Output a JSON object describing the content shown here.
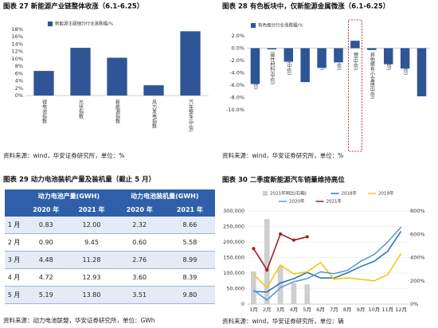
{
  "chart_data": [
    {
      "type": "bar",
      "title": "图表 27 新能源产业链整体收涨（6.1-6.25）",
      "categories": [
        "锂电池指数",
        "光伏指数",
        "新能源指数",
        "风力发电指数",
        "汽车整车(中信)"
      ],
      "series": [
        {
          "name": "新能源主题细分行业涨跌幅/%",
          "color": "#2f5597",
          "values": [
            6.7,
            13.0,
            10.3,
            2.8,
            17.5
          ]
        }
      ],
      "ylim": [
        0,
        18
      ],
      "yticks": [
        {
          "value": 0,
          "label": "0%"
        },
        {
          "value": 2,
          "label": "2%"
        },
        {
          "value": 4,
          "label": "4%"
        },
        {
          "value": 6,
          "label": "6%"
        },
        {
          "value": 8,
          "label": "8%"
        },
        {
          "value": 10,
          "label": "10%"
        },
        {
          "value": 12,
          "label": "12%"
        },
        {
          "value": 14,
          "label": "14%"
        },
        {
          "value": 16,
          "label": "16%"
        },
        {
          "value": 18,
          "label": "18%"
        }
      ],
      "grid": false,
      "source": "资料来源：wind，华安证券研究所，单位：%"
    },
    {
      "type": "bar",
      "title": "图表 28 有色板块中，仅新能源金属微涨（6.1-6.25）",
      "categories": [
        "金属新材料(中信)",
        "磁性材料(中信)",
        "黄金(中信)",
        "稀土(中信)",
        "铝(中信)",
        "铜(中信)",
        "锂(中信)",
        "其他稀有小金属(中信)",
        "钴(中信)",
        "铅锌(中信)",
        "钨(中信)"
      ],
      "series": [
        {
          "name": "有色细分行业涨跌幅/%",
          "color": "#2f5597",
          "values": [
            -5.8,
            -0.2,
            -2.2,
            -5.5,
            -3.2,
            -2.3,
            1.2,
            -0.3,
            -2.6,
            -3.3,
            -7.8
          ]
        }
      ],
      "ylim": [
        -10,
        2
      ],
      "yticks": [
        {
          "value": 2,
          "label": "2.0%"
        },
        {
          "value": 0,
          "label": "0.0%"
        },
        {
          "value": -2,
          "label": "-2.0%"
        },
        {
          "value": -4,
          "label": "-4.0%"
        },
        {
          "value": -6,
          "label": "-6.0%"
        },
        {
          "value": -8,
          "label": "-8.0%"
        },
        {
          "value": -10,
          "label": "-10.0%"
        }
      ],
      "grid": false,
      "highlight": 6,
      "source": "资料来源：wind，华安证券研究所，单位：%"
    },
    {
      "type": "combo",
      "title": "图表 30 二季度新能源汽车销量维持高位",
      "categories": [
        "1月",
        "2月",
        "3月",
        "4月",
        "5月",
        "6月",
        "7月",
        "8月",
        "9月",
        "10月",
        "11月",
        "12月"
      ],
      "series": [
        {
          "name": "2021年同比(右轴)",
          "type": "bar",
          "axis": "y2",
          "color": "#cfcfcf",
          "values": [
            280,
            730,
            327,
            180,
            170,
            null,
            null,
            null,
            null,
            null,
            null,
            null
          ]
        },
        {
          "name": "2018年",
          "type": "line",
          "color": "#2e75b6",
          "values": [
            41000,
            39000,
            68000,
            82000,
            102000,
            84000,
            84000,
            101000,
            121000,
            138000,
            170000,
            235000
          ]
        },
        {
          "name": "2019年",
          "type": "line",
          "color": "#f2c714",
          "values": [
            96000,
            53000,
            126000,
            97000,
            104000,
            134000,
            80000,
            85000,
            80000,
            75000,
            95000,
            163000
          ]
        },
        {
          "name": "2020年",
          "type": "line",
          "color": "#5b9bd5",
          "values": [
            45000,
            13000,
            53000,
            72000,
            82000,
            104000,
            98000,
            109000,
            138000,
            160000,
            200000,
            248000
          ]
        },
        {
          "name": "2021年",
          "type": "line",
          "color": "#a31e22",
          "values": [
            179000,
            110000,
            226000,
            206000,
            217000,
            null,
            null,
            null,
            null,
            null,
            null,
            null
          ]
        }
      ],
      "ylim": [
        0,
        300000
      ],
      "yticks": [
        0,
        {
          "value": 50000,
          "label": "50,000"
        },
        {
          "value": 100000,
          "label": "100,000"
        },
        {
          "value": 150000,
          "label": "150,000"
        },
        {
          "value": 200000,
          "label": "200,000"
        },
        {
          "value": 250000,
          "label": "250,000"
        },
        {
          "value": 300000,
          "label": "300,000"
        }
      ],
      "y2lim": [
        0,
        800
      ],
      "y2ticks": [
        {
          "value": 0,
          "label": "0%"
        },
        {
          "value": 200,
          "label": "200%"
        },
        {
          "value": 400,
          "label": "400%"
        },
        {
          "value": 600,
          "label": "600%"
        },
        {
          "value": 800,
          "label": "800%"
        }
      ],
      "grid": true,
      "legend": "top",
      "source": "资料来源：wind，华安证券研究所，单位：辆"
    }
  ],
  "table": {
    "title": "图表 29 动力电池装机产量及装机量（截止 5 月）",
    "header": [
      "动力电池产量(GWH)",
      "动力电池装机量(GWH)"
    ],
    "subheader": [
      "2020 年",
      "2021 年",
      "2020 年",
      "2021 年"
    ],
    "rows": [
      [
        "1 月",
        "0.83",
        "12.00",
        "2.32",
        "8.66"
      ],
      [
        "2 月",
        "0.90",
        "9.45",
        "0.60",
        "5.58"
      ],
      [
        "3 月",
        "4.48",
        "11.28",
        "2.76",
        "8.99"
      ],
      [
        "4 月",
        "4.72",
        "12.93",
        "3.60",
        "8.39"
      ],
      [
        "5 月",
        "5.19",
        "13.80",
        "3.51",
        "9.80"
      ]
    ],
    "source": "资料来源：动力电池联盟，华安证券研究所，单位：GWh"
  }
}
